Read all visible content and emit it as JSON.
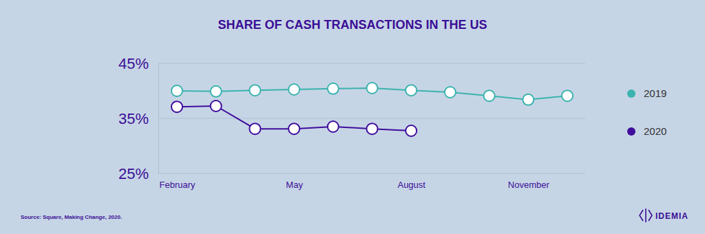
{
  "chart_data": {
    "type": "line",
    "title": "SHARE OF CASH TRANSACTIONS IN THE US",
    "categories": [
      "February",
      null,
      null,
      "May",
      null,
      null,
      "August",
      null,
      null,
      "November",
      null
    ],
    "series": [
      {
        "name": "2019",
        "color": "#3bb3ae",
        "values": [
          40.0,
          39.9,
          40.1,
          40.25,
          40.4,
          40.5,
          40.1,
          39.75,
          39.1,
          38.4,
          39.1
        ]
      },
      {
        "name": "2020",
        "color": "#3f0e9c",
        "values": [
          37.1,
          37.25,
          33.1,
          33.1,
          33.5,
          33.1,
          32.75,
          null,
          null,
          null,
          null
        ]
      }
    ],
    "ylim": [
      25,
      45
    ],
    "yticks": [
      {
        "value": 25,
        "label": "25%"
      },
      {
        "value": 35,
        "label": "35%"
      },
      {
        "value": 45,
        "label": "45%"
      }
    ],
    "grid": true,
    "legend": "right",
    "marker": "circle",
    "source": "Source: Square, Making Change, 2020.",
    "brand": "IDEMIA"
  }
}
